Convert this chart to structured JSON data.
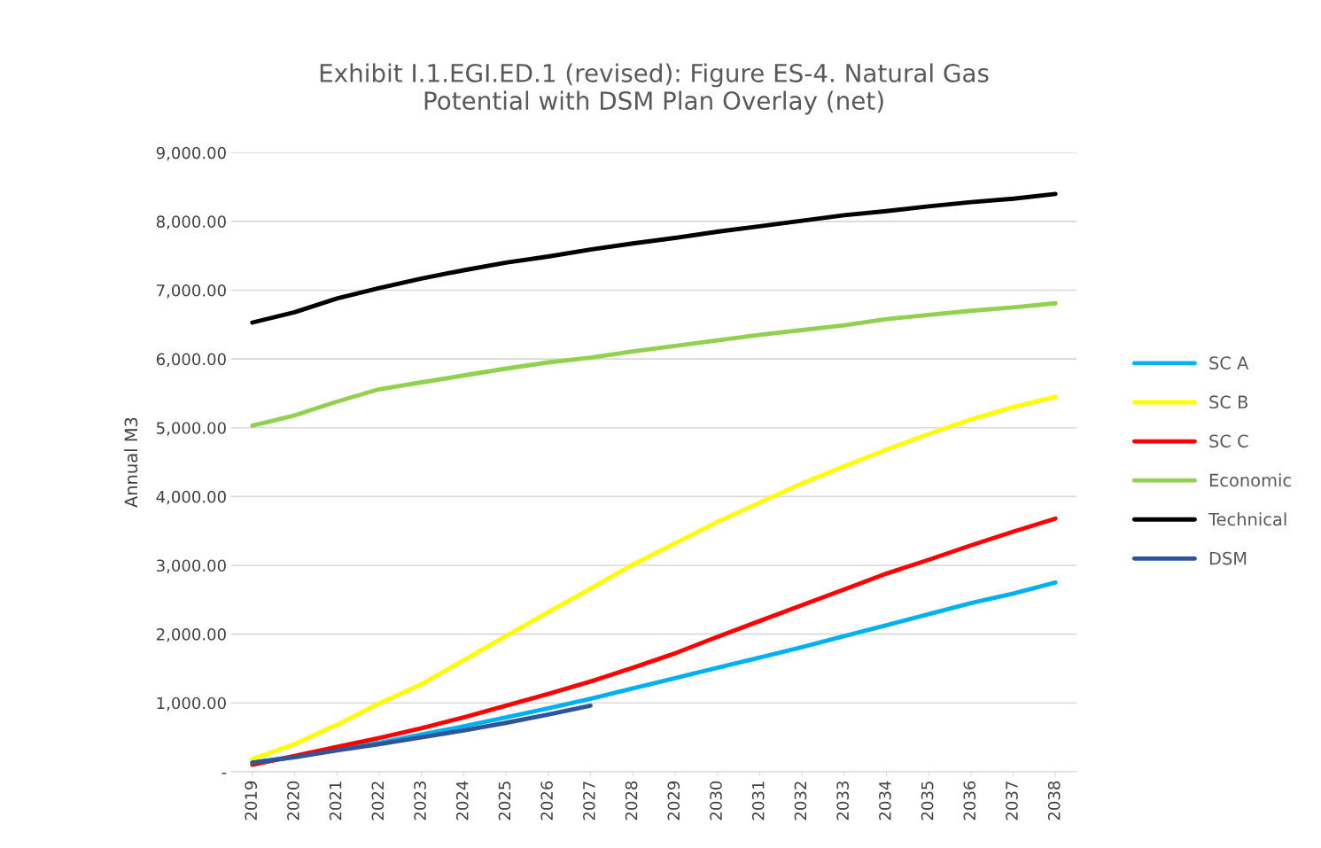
{
  "chart_data": {
    "type": "line",
    "title": "Exhibit I.1.EGI.ED.1 (revised): Figure ES-4. Natural Gas\nPotential with DSM Plan Overlay (net)",
    "ylabel": "Annual M3",
    "categories": [
      "2019",
      "2020",
      "2021",
      "2022",
      "2023",
      "2024",
      "2025",
      "2026",
      "2027",
      "2028",
      "2029",
      "2030",
      "2031",
      "2032",
      "2033",
      "2034",
      "2035",
      "2036",
      "2037",
      "2038"
    ],
    "series": [
      {
        "name": "SC A",
        "color": "#00b0f0",
        "values": [
          130,
          220,
          320,
          420,
          540,
          660,
          790,
          920,
          1060,
          1210,
          1360,
          1510,
          1660,
          1810,
          1970,
          2130,
          2290,
          2450,
          2590,
          2750
        ]
      },
      {
        "name": "SC B",
        "color": "#ffff00",
        "values": [
          180,
          400,
          680,
          990,
          1270,
          1620,
          1970,
          2320,
          2660,
          3010,
          3320,
          3630,
          3910,
          4190,
          4440,
          4680,
          4910,
          5120,
          5300,
          5450
        ]
      },
      {
        "name": "SC C",
        "color": "#ff0000",
        "values": [
          100,
          230,
          360,
          490,
          630,
          790,
          960,
          1130,
          1310,
          1510,
          1720,
          1960,
          2190,
          2420,
          2650,
          2880,
          3080,
          3290,
          3490,
          3680
        ]
      },
      {
        "name": "Economic",
        "color": "#92d050",
        "values": [
          5030,
          5180,
          5380,
          5560,
          5660,
          5760,
          5860,
          5950,
          6020,
          6110,
          6190,
          6270,
          6350,
          6420,
          6490,
          6580,
          6640,
          6700,
          6750,
          6810
        ]
      },
      {
        "name": "Technical",
        "color": "#000000",
        "values": [
          6530,
          6680,
          6880,
          7030,
          7170,
          7290,
          7400,
          7490,
          7590,
          7680,
          7760,
          7850,
          7930,
          8010,
          8090,
          8150,
          8220,
          8280,
          8330,
          8400
        ]
      },
      {
        "name": "DSM",
        "color": "#2f5597",
        "values": [
          130,
          210,
          310,
          400,
          500,
          600,
          710,
          830,
          960,
          null,
          null,
          null,
          null,
          null,
          null,
          null,
          null,
          null,
          null,
          null
        ]
      }
    ],
    "ylim": [
      0,
      9000
    ],
    "yticks": [
      {
        "value": 0,
        "label": "-"
      },
      {
        "value": 1000,
        "label": "1,000.00"
      },
      {
        "value": 2000,
        "label": "2,000.00"
      },
      {
        "value": 3000,
        "label": "3,000.00"
      },
      {
        "value": 4000,
        "label": "4,000.00"
      },
      {
        "value": 5000,
        "label": "5,000.00"
      },
      {
        "value": 6000,
        "label": "6,000.00"
      },
      {
        "value": 7000,
        "label": "7,000.00"
      },
      {
        "value": 8000,
        "label": "8,000.00"
      },
      {
        "value": 9000,
        "label": "9,000.00"
      }
    ],
    "grid": "y",
    "legend": "right",
    "marker": "none",
    "line_style": "solid"
  }
}
